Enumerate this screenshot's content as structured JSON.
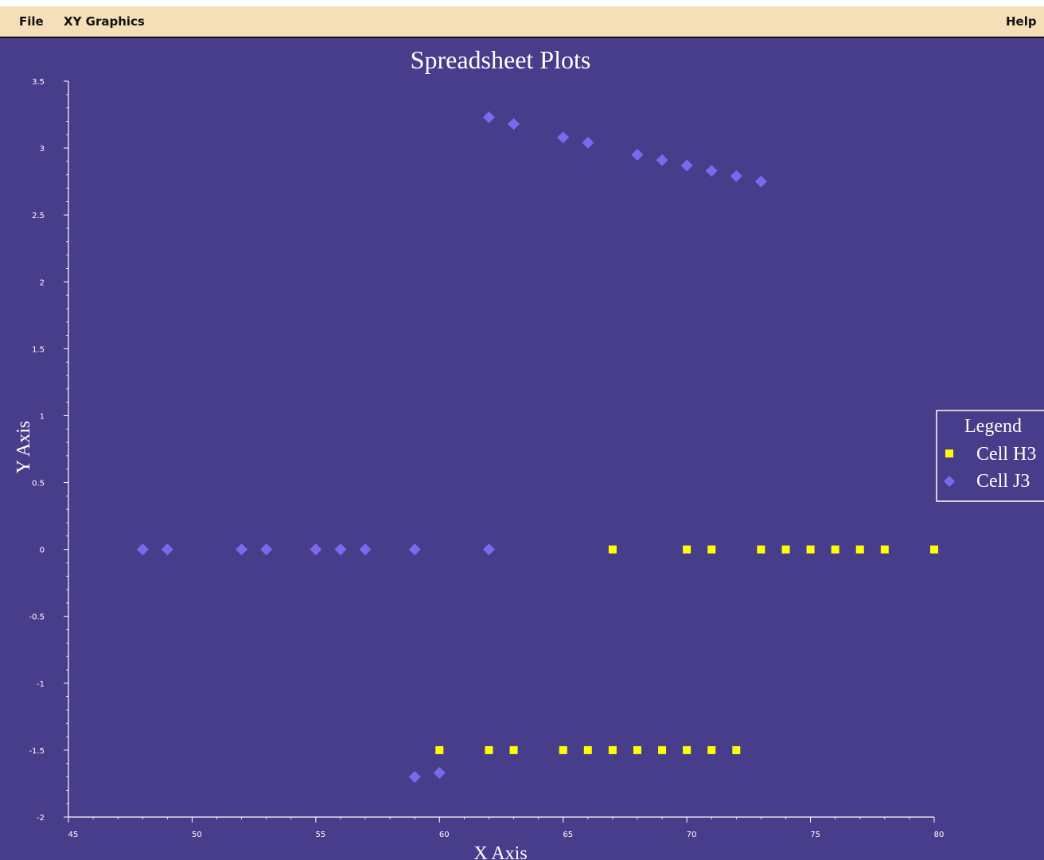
{
  "menu": {
    "file": "File",
    "xy_graphics": "XY Graphics",
    "help": "Help"
  },
  "colors": {
    "plot_background": "#483d8b",
    "menubar_background": "#f5dfb8",
    "series_h3": "#ffff00",
    "series_j3": "#7b68ee",
    "axis": "#ffffff"
  },
  "chart_data": {
    "type": "scatter",
    "title": "Spreadsheet Plots",
    "xlabel": "X Axis",
    "ylabel": "Y Axis",
    "xlim": [
      45,
      80
    ],
    "ylim": [
      -2,
      3.5
    ],
    "x_ticks": [
      "45",
      "50",
      "55",
      "60",
      "65",
      "70",
      "75",
      "80"
    ],
    "y_ticks": [
      "-2",
      "-1.5",
      "-1",
      "-0.5",
      "0",
      "0.5",
      "1",
      "1.5",
      "2",
      "2.5",
      "3",
      "3.5"
    ],
    "legend": {
      "title": "Legend",
      "placement": "right"
    },
    "series": [
      {
        "name": "Cell H3",
        "marker": "square",
        "color": "#ffff00",
        "points": [
          [
            60,
            -1.5
          ],
          [
            62,
            -1.5
          ],
          [
            63,
            -1.5
          ],
          [
            65,
            -1.5
          ],
          [
            66,
            -1.5
          ],
          [
            67,
            -1.5
          ],
          [
            68,
            -1.5
          ],
          [
            69,
            -1.5
          ],
          [
            70,
            -1.5
          ],
          [
            71,
            -1.5
          ],
          [
            72,
            -1.5
          ],
          [
            67,
            0
          ],
          [
            70,
            0
          ],
          [
            71,
            0
          ],
          [
            73,
            0
          ],
          [
            74,
            0
          ],
          [
            75,
            0
          ],
          [
            76,
            0
          ],
          [
            77,
            0
          ],
          [
            78,
            0
          ],
          [
            80,
            0
          ]
        ]
      },
      {
        "name": "Cell J3",
        "marker": "diamond",
        "color": "#7b68ee",
        "points": [
          [
            48,
            0
          ],
          [
            49,
            0
          ],
          [
            52,
            0
          ],
          [
            53,
            0
          ],
          [
            55,
            0
          ],
          [
            56,
            0
          ],
          [
            57,
            0
          ],
          [
            59,
            0
          ],
          [
            62,
            0
          ],
          [
            59,
            -1.7
          ],
          [
            60,
            -1.67
          ],
          [
            62,
            3.23
          ],
          [
            63,
            3.18
          ],
          [
            65,
            3.08
          ],
          [
            66,
            3.04
          ],
          [
            68,
            2.95
          ],
          [
            69,
            2.91
          ],
          [
            70,
            2.87
          ],
          [
            71,
            2.83
          ],
          [
            72,
            2.79
          ],
          [
            73,
            2.75
          ]
        ]
      }
    ]
  }
}
